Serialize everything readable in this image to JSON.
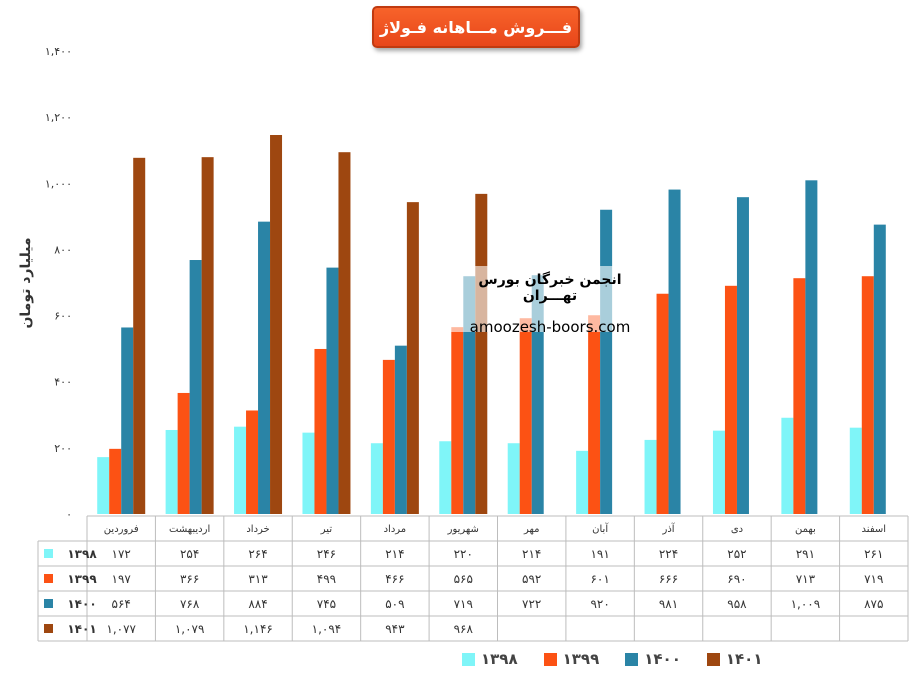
{
  "chart_data": {
    "type": "bar",
    "title": "فـــروش مـــاهانه فـولاژ",
    "ylabel": "میلیارد تومان",
    "ylim": [
      0,
      1400
    ],
    "yticks": [
      "۰",
      "۲۰۰",
      "۴۰۰",
      "۶۰۰",
      "۸۰۰",
      "۱,۰۰۰",
      "۱,۲۰۰",
      "۱,۴۰۰"
    ],
    "categories": [
      "فروردین",
      "اردیبهشت",
      "خرداد",
      "تیر",
      "مرداد",
      "شهریور",
      "مهر",
      "آبان",
      "آذر",
      "دی",
      "بهمن",
      "اسفند"
    ],
    "legend_position": "bottom",
    "grid": false,
    "series": [
      {
        "name": "۱۳۹۸",
        "color": "#7ff5f8",
        "values": [
          172,
          254,
          264,
          246,
          214,
          220,
          214,
          191,
          224,
          252,
          291,
          261
        ],
        "labels": [
          "۱۷۲",
          "۲۵۴",
          "۲۶۴",
          "۲۴۶",
          "۲۱۴",
          "۲۲۰",
          "۲۱۴",
          "۱۹۱",
          "۲۲۴",
          "۲۵۲",
          "۲۹۱",
          "۲۶۱"
        ]
      },
      {
        "name": "۱۳۹۹",
        "color": "#fc5214",
        "values": [
          197,
          366,
          313,
          499,
          466,
          565,
          592,
          601,
          666,
          690,
          713,
          719
        ],
        "labels": [
          "۱۹۷",
          "۳۶۶",
          "۳۱۳",
          "۴۹۹",
          "۴۶۶",
          "۵۶۵",
          "۵۹۲",
          "۶۰۱",
          "۶۶۶",
          "۶۹۰",
          "۷۱۳",
          "۷۱۹"
        ]
      },
      {
        "name": "۱۴۰۰",
        "color": "#2a84a6",
        "values": [
          564,
          768,
          884,
          745,
          509,
          719,
          722,
          920,
          981,
          958,
          1009,
          875
        ],
        "labels": [
          "۵۶۴",
          "۷۶۸",
          "۸۸۴",
          "۷۴۵",
          "۵۰۹",
          "۷۱۹",
          "۷۲۲",
          "۹۲۰",
          "۹۸۱",
          "۹۵۸",
          "۱,۰۰۹",
          "۸۷۵"
        ]
      },
      {
        "name": "۱۴۰۱",
        "color": "#9e4710",
        "values": [
          1077,
          1079,
          1146,
          1094,
          943,
          968,
          null,
          null,
          null,
          null,
          null,
          null
        ],
        "labels": [
          "۱,۰۷۷",
          "۱,۰۷۹",
          "۱,۱۴۶",
          "۱,۰۹۴",
          "۹۴۳",
          "۹۶۸",
          "",
          "",
          "",
          "",
          "",
          ""
        ]
      }
    ]
  },
  "watermark": {
    "line1": "انجمن خبرگان بورس تهـــران",
    "line2": "amoozesh-boors.com"
  }
}
